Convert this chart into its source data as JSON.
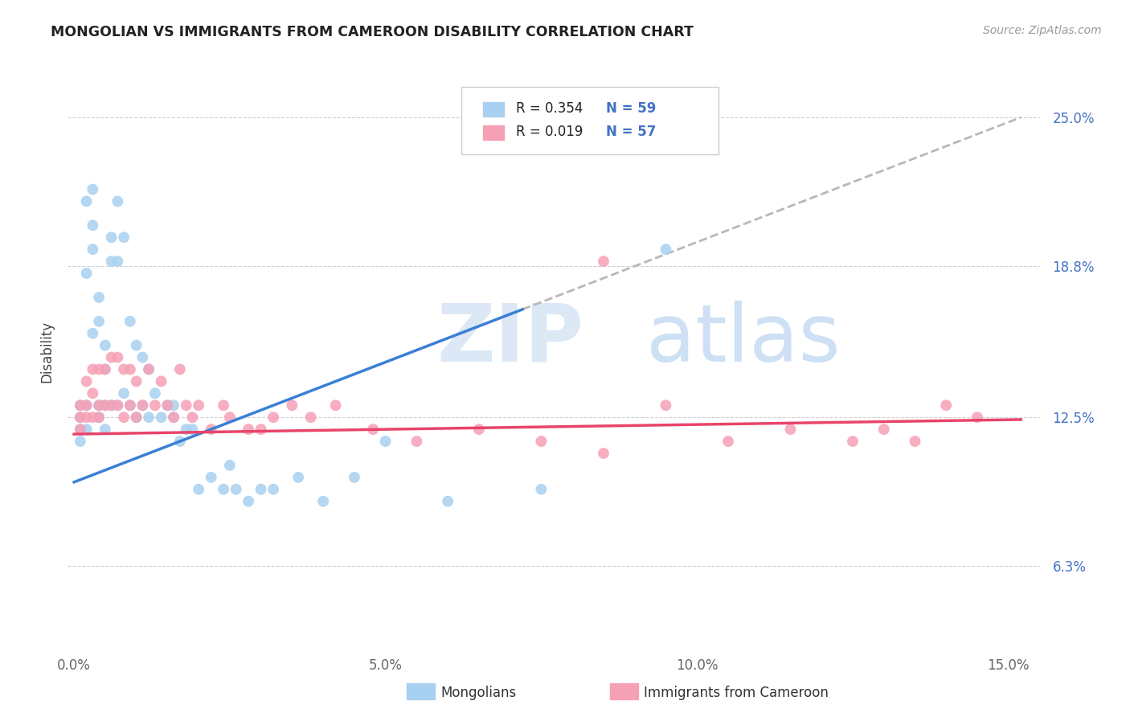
{
  "title": "MONGOLIAN VS IMMIGRANTS FROM CAMEROON DISABILITY CORRELATION CHART",
  "source": "Source: ZipAtlas.com",
  "ylabel": "Disability",
  "xlim": [
    -0.001,
    0.155
  ],
  "ylim": [
    0.03,
    0.275
  ],
  "yticks": [
    0.063,
    0.125,
    0.188,
    0.25
  ],
  "ytick_labels": [
    "6.3%",
    "12.5%",
    "18.8%",
    "25.0%"
  ],
  "xticks": [
    0.0,
    0.05,
    0.1,
    0.15
  ],
  "xtick_labels": [
    "0.0%",
    "5.0%",
    "10.0%",
    "15.0%"
  ],
  "mongolian_color": "#a8d0f0",
  "cameroon_color": "#f5a0b5",
  "trend_mongolian_color": "#3a7fd5",
  "trend_cameroon_color": "#e8446a",
  "trend_dashed_color": "#b8b8b8",
  "legend_R1": "R = 0.354",
  "legend_N1": "N = 59",
  "legend_R2": "R = 0.019",
  "legend_N2": "N = 57",
  "legend_label1": "Mongolians",
  "legend_label2": "Immigrants from Cameroon",
  "watermark_zip": "ZIP",
  "watermark_atlas": "atlas",
  "mongolian_x": [
    0.001,
    0.001,
    0.001,
    0.001,
    0.002,
    0.002,
    0.002,
    0.002,
    0.003,
    0.003,
    0.003,
    0.003,
    0.004,
    0.004,
    0.004,
    0.004,
    0.005,
    0.005,
    0.005,
    0.005,
    0.006,
    0.006,
    0.006,
    0.007,
    0.007,
    0.007,
    0.008,
    0.008,
    0.009,
    0.009,
    0.01,
    0.01,
    0.011,
    0.011,
    0.012,
    0.012,
    0.013,
    0.014,
    0.015,
    0.016,
    0.016,
    0.017,
    0.018,
    0.019,
    0.02,
    0.022,
    0.024,
    0.025,
    0.026,
    0.028,
    0.03,
    0.032,
    0.036,
    0.04,
    0.045,
    0.05,
    0.06,
    0.075,
    0.095
  ],
  "mongolian_y": [
    0.125,
    0.13,
    0.12,
    0.115,
    0.185,
    0.215,
    0.13,
    0.12,
    0.22,
    0.205,
    0.195,
    0.16,
    0.175,
    0.165,
    0.13,
    0.125,
    0.155,
    0.145,
    0.13,
    0.12,
    0.2,
    0.19,
    0.13,
    0.215,
    0.19,
    0.13,
    0.2,
    0.135,
    0.165,
    0.13,
    0.155,
    0.125,
    0.15,
    0.13,
    0.145,
    0.125,
    0.135,
    0.125,
    0.13,
    0.13,
    0.125,
    0.115,
    0.12,
    0.12,
    0.095,
    0.1,
    0.095,
    0.105,
    0.095,
    0.09,
    0.095,
    0.095,
    0.1,
    0.09,
    0.1,
    0.115,
    0.09,
    0.095,
    0.195
  ],
  "cameroon_x": [
    0.001,
    0.001,
    0.001,
    0.002,
    0.002,
    0.002,
    0.003,
    0.003,
    0.003,
    0.004,
    0.004,
    0.004,
    0.005,
    0.005,
    0.006,
    0.006,
    0.007,
    0.007,
    0.008,
    0.008,
    0.009,
    0.009,
    0.01,
    0.01,
    0.011,
    0.012,
    0.013,
    0.014,
    0.015,
    0.016,
    0.017,
    0.018,
    0.019,
    0.02,
    0.022,
    0.024,
    0.025,
    0.028,
    0.03,
    0.032,
    0.035,
    0.038,
    0.042,
    0.048,
    0.055,
    0.065,
    0.075,
    0.085,
    0.095,
    0.105,
    0.115,
    0.125,
    0.085,
    0.13,
    0.135,
    0.14,
    0.145
  ],
  "cameroon_y": [
    0.13,
    0.125,
    0.12,
    0.14,
    0.13,
    0.125,
    0.145,
    0.135,
    0.125,
    0.145,
    0.13,
    0.125,
    0.145,
    0.13,
    0.15,
    0.13,
    0.15,
    0.13,
    0.145,
    0.125,
    0.145,
    0.13,
    0.14,
    0.125,
    0.13,
    0.145,
    0.13,
    0.14,
    0.13,
    0.125,
    0.145,
    0.13,
    0.125,
    0.13,
    0.12,
    0.13,
    0.125,
    0.12,
    0.12,
    0.125,
    0.13,
    0.125,
    0.13,
    0.12,
    0.115,
    0.12,
    0.115,
    0.11,
    0.13,
    0.115,
    0.12,
    0.115,
    0.19,
    0.12,
    0.115,
    0.13,
    0.125
  ]
}
